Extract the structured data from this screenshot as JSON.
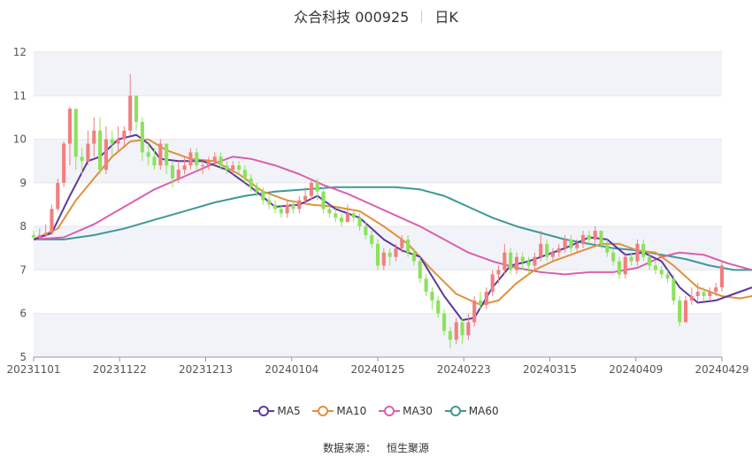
{
  "header": {
    "title": "众合科技 000925",
    "period": "日K"
  },
  "source": {
    "label": "数据来源：",
    "value": "恒生聚源"
  },
  "colors": {
    "up": "#f07f7f",
    "down": "#8ce25a",
    "ma5": "#5a3a9e",
    "ma10": "#e0913a",
    "ma30": "#d960ad",
    "ma60": "#3e9898",
    "band": "#f2f3f9",
    "grid": "#e6e6e6"
  },
  "chart_data": {
    "type": "candlestick",
    "x_ticks": [
      "20231101",
      "20231122",
      "20231213",
      "20240104",
      "20240125",
      "20240223",
      "20240315",
      "20240409",
      "20240429"
    ],
    "y_ticks": [
      5,
      6,
      7,
      8,
      9,
      10,
      11,
      12
    ],
    "ylim": [
      5,
      12
    ],
    "grid": true,
    "legend_position": "bottom",
    "legend": [
      "MA5",
      "MA10",
      "MA30",
      "MA60"
    ],
    "candles": [
      [
        7.8,
        7.75,
        7.9,
        7.7
      ],
      [
        7.75,
        7.8,
        7.95,
        7.7
      ],
      [
        7.8,
        7.85,
        8.05,
        7.75
      ],
      [
        7.85,
        8.4,
        8.5,
        7.8
      ],
      [
        8.4,
        9.0,
        9.1,
        8.35
      ],
      [
        9.0,
        9.9,
        9.95,
        8.9
      ],
      [
        9.9,
        10.7,
        10.75,
        9.4
      ],
      [
        10.7,
        9.6,
        10.7,
        9.3
      ],
      [
        9.6,
        9.5,
        9.8,
        9.2
      ],
      [
        9.5,
        9.9,
        10.2,
        9.4
      ],
      [
        9.9,
        10.2,
        10.5,
        9.6
      ],
      [
        10.2,
        9.3,
        10.5,
        9.2
      ],
      [
        9.3,
        10.0,
        10.3,
        9.2
      ],
      [
        10.0,
        9.9,
        10.2,
        9.6
      ],
      [
        9.9,
        10.0,
        10.3,
        9.7
      ],
      [
        10.0,
        10.2,
        10.3,
        9.8
      ],
      [
        10.2,
        11.0,
        11.5,
        10.1
      ],
      [
        11.0,
        10.4,
        11.0,
        10.2
      ],
      [
        10.4,
        9.7,
        10.5,
        9.5
      ],
      [
        9.7,
        9.6,
        9.9,
        9.4
      ],
      [
        9.6,
        9.4,
        9.8,
        9.3
      ],
      [
        9.4,
        9.9,
        10.0,
        9.3
      ],
      [
        9.9,
        9.4,
        9.9,
        9.2
      ],
      [
        9.4,
        9.1,
        9.5,
        8.9
      ],
      [
        9.1,
        9.3,
        9.5,
        9.0
      ],
      [
        9.3,
        9.4,
        9.6,
        9.2
      ],
      [
        9.4,
        9.7,
        9.8,
        9.3
      ],
      [
        9.7,
        9.4,
        9.8,
        9.3
      ],
      [
        9.4,
        9.4,
        9.5,
        9.2
      ],
      [
        9.4,
        9.5,
        9.6,
        9.3
      ],
      [
        9.5,
        9.6,
        9.7,
        9.4
      ],
      [
        9.6,
        9.4,
        9.7,
        9.3
      ],
      [
        9.4,
        9.3,
        9.5,
        9.2
      ],
      [
        9.3,
        9.4,
        9.5,
        9.2
      ],
      [
        9.4,
        9.3,
        9.5,
        9.2
      ],
      [
        9.3,
        9.1,
        9.4,
        9.0
      ],
      [
        9.1,
        8.9,
        9.2,
        8.8
      ],
      [
        8.9,
        8.8,
        9.0,
        8.7
      ],
      [
        8.8,
        8.6,
        8.9,
        8.5
      ],
      [
        8.6,
        8.5,
        8.7,
        8.4
      ],
      [
        8.5,
        8.4,
        8.6,
        8.3
      ],
      [
        8.4,
        8.3,
        8.5,
        8.2
      ],
      [
        8.3,
        8.5,
        8.6,
        8.2
      ],
      [
        8.5,
        8.4,
        8.6,
        8.3
      ],
      [
        8.4,
        8.6,
        8.7,
        8.3
      ],
      [
        8.6,
        8.7,
        8.9,
        8.5
      ],
      [
        8.7,
        9.0,
        9.1,
        8.6
      ],
      [
        9.0,
        8.8,
        9.1,
        8.6
      ],
      [
        8.8,
        8.4,
        8.9,
        8.3
      ],
      [
        8.4,
        8.3,
        8.5,
        8.2
      ],
      [
        8.3,
        8.2,
        8.4,
        8.1
      ],
      [
        8.2,
        8.1,
        8.3,
        8.0
      ],
      [
        8.1,
        8.3,
        8.5,
        8.1
      ],
      [
        8.3,
        8.2,
        8.4,
        8.1
      ],
      [
        8.2,
        8.0,
        8.3,
        7.9
      ],
      [
        8.0,
        7.8,
        8.1,
        7.7
      ],
      [
        7.8,
        7.6,
        7.9,
        7.5
      ],
      [
        7.6,
        7.1,
        7.7,
        7.0
      ],
      [
        7.1,
        7.4,
        7.5,
        7.0
      ],
      [
        7.4,
        7.3,
        7.5,
        7.1
      ],
      [
        7.3,
        7.5,
        7.6,
        7.2
      ],
      [
        7.5,
        7.7,
        7.8,
        7.4
      ],
      [
        7.7,
        7.4,
        7.8,
        7.3
      ],
      [
        7.4,
        7.2,
        7.5,
        7.1
      ],
      [
        7.2,
        6.8,
        7.3,
        6.7
      ],
      [
        6.8,
        6.5,
        6.9,
        6.4
      ],
      [
        6.5,
        6.3,
        6.6,
        6.1
      ],
      [
        6.3,
        6.0,
        6.4,
        5.9
      ],
      [
        6.0,
        5.6,
        6.1,
        5.5
      ],
      [
        5.6,
        5.4,
        5.7,
        5.2
      ],
      [
        5.4,
        5.8,
        5.9,
        5.3
      ],
      [
        5.8,
        5.5,
        5.9,
        5.3
      ],
      [
        5.5,
        5.8,
        6.0,
        5.4
      ],
      [
        5.8,
        6.3,
        6.4,
        5.7
      ],
      [
        6.3,
        6.2,
        6.5,
        6.1
      ],
      [
        6.2,
        6.5,
        6.6,
        6.1
      ],
      [
        6.5,
        6.9,
        7.0,
        6.4
      ],
      [
        6.9,
        7.0,
        7.1,
        6.7
      ],
      [
        7.0,
        7.4,
        7.6,
        6.9
      ],
      [
        7.4,
        7.0,
        7.5,
        6.9
      ],
      [
        7.0,
        7.3,
        7.4,
        6.9
      ],
      [
        7.3,
        7.2,
        7.4,
        7.0
      ],
      [
        7.2,
        7.1,
        7.3,
        6.9
      ],
      [
        7.1,
        7.3,
        7.4,
        7.0
      ],
      [
        7.3,
        7.6,
        7.9,
        7.2
      ],
      [
        7.6,
        7.3,
        7.7,
        7.2
      ],
      [
        7.3,
        7.4,
        7.5,
        7.2
      ],
      [
        7.4,
        7.5,
        7.6,
        7.3
      ],
      [
        7.5,
        7.7,
        7.8,
        7.4
      ],
      [
        7.7,
        7.5,
        7.8,
        7.4
      ],
      [
        7.5,
        7.6,
        7.7,
        7.4
      ],
      [
        7.6,
        7.8,
        7.9,
        7.5
      ],
      [
        7.8,
        7.7,
        7.9,
        7.6
      ],
      [
        7.7,
        7.9,
        8.0,
        7.6
      ],
      [
        7.9,
        7.6,
        7.9,
        7.5
      ],
      [
        7.6,
        7.4,
        7.7,
        7.3
      ],
      [
        7.4,
        7.2,
        7.5,
        7.1
      ],
      [
        7.2,
        6.9,
        7.3,
        6.8
      ],
      [
        6.9,
        7.3,
        7.4,
        6.8
      ],
      [
        7.3,
        7.2,
        7.4,
        7.1
      ],
      [
        7.2,
        7.6,
        7.7,
        7.1
      ],
      [
        7.6,
        7.3,
        7.7,
        7.2
      ],
      [
        7.3,
        7.1,
        7.4,
        7.0
      ],
      [
        7.1,
        7.0,
        7.2,
        6.9
      ],
      [
        7.0,
        6.9,
        7.1,
        6.8
      ],
      [
        6.9,
        6.8,
        7.0,
        6.7
      ],
      [
        6.8,
        6.3,
        6.9,
        6.2
      ],
      [
        6.3,
        5.8,
        6.4,
        5.7
      ],
      [
        5.8,
        6.3,
        6.4,
        5.8
      ],
      [
        6.3,
        6.4,
        6.6,
        6.2
      ],
      [
        6.4,
        6.5,
        6.7,
        6.3
      ],
      [
        6.5,
        6.4,
        6.6,
        6.3
      ],
      [
        6.4,
        6.5,
        6.6,
        6.3
      ],
      [
        6.5,
        6.6,
        6.7,
        6.4
      ],
      [
        6.6,
        7.1,
        7.2,
        6.5
      ]
    ],
    "ma5": [
      [
        0,
        7.7
      ],
      [
        3,
        7.85
      ],
      [
        6,
        8.7
      ],
      [
        9,
        9.5
      ],
      [
        11,
        9.6
      ],
      [
        14,
        10.0
      ],
      [
        17,
        10.1
      ],
      [
        19,
        9.9
      ],
      [
        21,
        9.55
      ],
      [
        24,
        9.5
      ],
      [
        28,
        9.5
      ],
      [
        32,
        9.3
      ],
      [
        36,
        8.9
      ],
      [
        40,
        8.45
      ],
      [
        44,
        8.5
      ],
      [
        47,
        8.7
      ],
      [
        50,
        8.4
      ],
      [
        54,
        8.2
      ],
      [
        58,
        7.7
      ],
      [
        61,
        7.45
      ],
      [
        64,
        7.3
      ],
      [
        68,
        6.4
      ],
      [
        71,
        5.85
      ],
      [
        73,
        5.9
      ],
      [
        76,
        6.6
      ],
      [
        79,
        7.1
      ],
      [
        82,
        7.2
      ],
      [
        85,
        7.35
      ],
      [
        88,
        7.5
      ],
      [
        92,
        7.75
      ],
      [
        95,
        7.7
      ],
      [
        98,
        7.35
      ],
      [
        101,
        7.4
      ],
      [
        104,
        7.2
      ],
      [
        107,
        6.6
      ],
      [
        110,
        6.25
      ],
      [
        113,
        6.3
      ],
      [
        116,
        6.45
      ],
      [
        119,
        6.6
      ]
    ],
    "ma10": [
      [
        0,
        7.7
      ],
      [
        4,
        7.95
      ],
      [
        7,
        8.6
      ],
      [
        10,
        9.1
      ],
      [
        13,
        9.6
      ],
      [
        16,
        9.95
      ],
      [
        19,
        10.0
      ],
      [
        22,
        9.75
      ],
      [
        26,
        9.55
      ],
      [
        30,
        9.5
      ],
      [
        34,
        9.2
      ],
      [
        38,
        8.8
      ],
      [
        42,
        8.6
      ],
      [
        46,
        8.5
      ],
      [
        50,
        8.45
      ],
      [
        54,
        8.35
      ],
      [
        58,
        8.0
      ],
      [
        62,
        7.6
      ],
      [
        66,
        7.0
      ],
      [
        70,
        6.45
      ],
      [
        74,
        6.2
      ],
      [
        77,
        6.3
      ],
      [
        80,
        6.7
      ],
      [
        83,
        7.0
      ],
      [
        86,
        7.2
      ],
      [
        90,
        7.4
      ],
      [
        94,
        7.6
      ],
      [
        97,
        7.6
      ],
      [
        100,
        7.45
      ],
      [
        103,
        7.4
      ],
      [
        106,
        7.1
      ],
      [
        110,
        6.6
      ],
      [
        114,
        6.4
      ],
      [
        117,
        6.35
      ],
      [
        119,
        6.4
      ]
    ],
    "ma30": [
      [
        0,
        7.7
      ],
      [
        5,
        7.75
      ],
      [
        10,
        8.05
      ],
      [
        15,
        8.45
      ],
      [
        20,
        8.85
      ],
      [
        25,
        9.15
      ],
      [
        30,
        9.45
      ],
      [
        33,
        9.6
      ],
      [
        36,
        9.55
      ],
      [
        40,
        9.4
      ],
      [
        44,
        9.2
      ],
      [
        48,
        8.95
      ],
      [
        52,
        8.75
      ],
      [
        56,
        8.5
      ],
      [
        60,
        8.25
      ],
      [
        64,
        8.0
      ],
      [
        68,
        7.7
      ],
      [
        72,
        7.4
      ],
      [
        76,
        7.2
      ],
      [
        80,
        7.05
      ],
      [
        84,
        6.95
      ],
      [
        88,
        6.9
      ],
      [
        92,
        6.95
      ],
      [
        96,
        6.95
      ],
      [
        100,
        7.05
      ],
      [
        104,
        7.3
      ],
      [
        107,
        7.4
      ],
      [
        111,
        7.35
      ],
      [
        115,
        7.15
      ],
      [
        119,
        7.0
      ]
    ],
    "ma60": [
      [
        0,
        7.7
      ],
      [
        5,
        7.7
      ],
      [
        10,
        7.8
      ],
      [
        15,
        7.95
      ],
      [
        20,
        8.15
      ],
      [
        25,
        8.35
      ],
      [
        30,
        8.55
      ],
      [
        35,
        8.7
      ],
      [
        40,
        8.8
      ],
      [
        45,
        8.85
      ],
      [
        50,
        8.9
      ],
      [
        55,
        8.9
      ],
      [
        60,
        8.9
      ],
      [
        64,
        8.85
      ],
      [
        68,
        8.7
      ],
      [
        72,
        8.45
      ],
      [
        76,
        8.2
      ],
      [
        80,
        8.0
      ],
      [
        84,
        7.85
      ],
      [
        88,
        7.7
      ],
      [
        92,
        7.6
      ],
      [
        96,
        7.5
      ],
      [
        100,
        7.45
      ],
      [
        104,
        7.35
      ],
      [
        108,
        7.25
      ],
      [
        112,
        7.1
      ],
      [
        116,
        7.0
      ],
      [
        119,
        7.0
      ]
    ]
  }
}
